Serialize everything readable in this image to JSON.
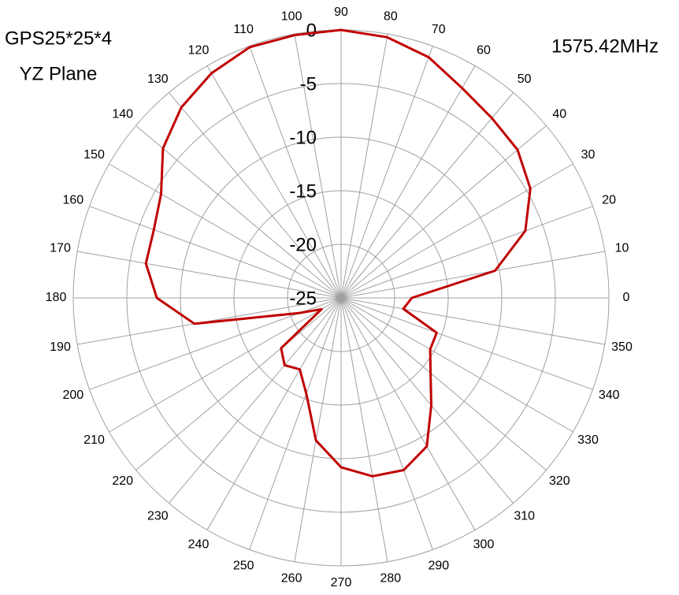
{
  "chart_data": {
    "type": "polar",
    "title": "GPS25*25*4",
    "subtitle": "YZ Plane",
    "annotation": "1575.42MHz",
    "x": [
      0,
      10,
      20,
      30,
      40,
      50,
      60,
      70,
      80,
      90,
      100,
      110,
      120,
      130,
      140,
      150,
      160,
      170,
      180,
      190,
      200,
      210,
      220,
      230,
      240,
      250,
      260,
      270,
      280,
      290,
      300,
      310,
      320,
      330,
      340,
      350
    ],
    "values": [
      -18.4,
      -10.4,
      -6.7,
      -4.6,
      -3.5,
      -3.1,
      -2.4,
      -1.1,
      -0.3,
      0,
      -0.1,
      -0.1,
      -0.8,
      -1.8,
      -3.3,
      -5.6,
      -6.4,
      -6.5,
      -7.8,
      -11.1,
      -20.9,
      -22.9,
      -17.7,
      -16.8,
      -17.3,
      -15.5,
      -11.5,
      -9.2,
      -8.1,
      -7.9,
      -9.0,
      -11.9,
      -14.1,
      -15.4,
      -15.5,
      -19.1
    ],
    "color": "#c00000",
    "ylim": [
      -25,
      0
    ],
    "yticks": [
      -25,
      -20,
      -15,
      -10,
      -5,
      0
    ],
    "xticks": [
      0,
      10,
      20,
      30,
      40,
      50,
      60,
      70,
      80,
      90,
      100,
      110,
      120,
      130,
      140,
      150,
      160,
      170,
      180,
      190,
      200,
      210,
      220,
      230,
      240,
      250,
      260,
      270,
      280,
      290,
      300,
      310,
      320,
      330,
      340,
      350
    ],
    "grid": true
  }
}
